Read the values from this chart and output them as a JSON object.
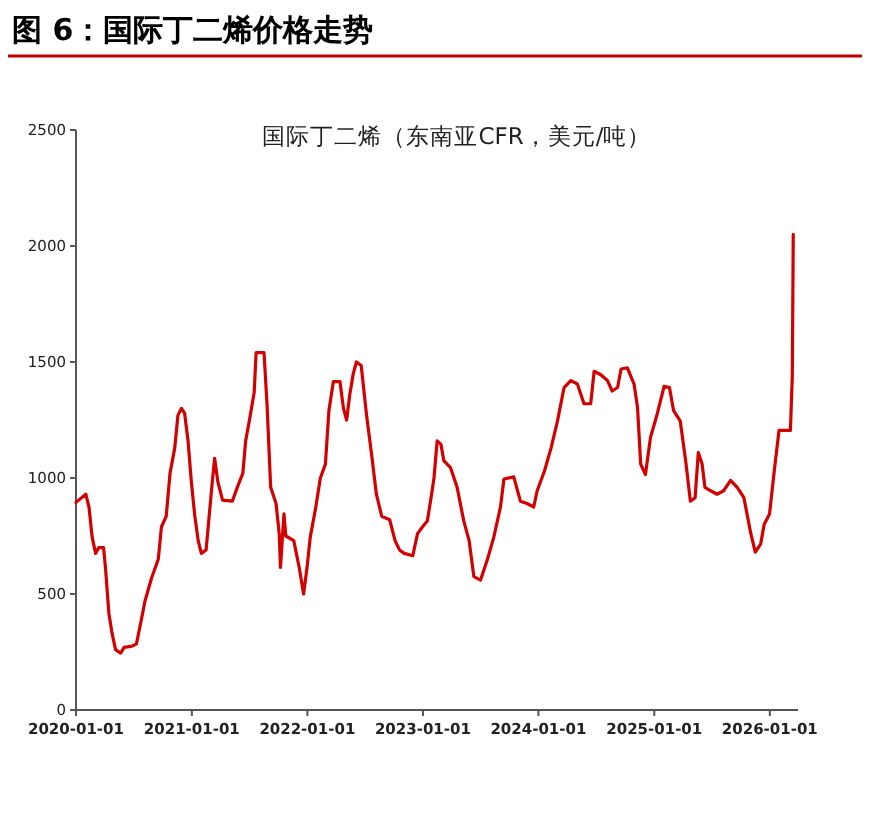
{
  "chart_data": {
    "type": "line",
    "title": "图 6：国际丁二烯价格走势",
    "subtitle": "国际丁二烯（东南亚CFR，美元/吨）",
    "xlim": [
      "2020-01-01",
      "2026-03-31"
    ],
    "ylim": [
      0,
      2500
    ],
    "yticks": [
      0,
      500,
      1000,
      1500,
      2000,
      2500
    ],
    "xticks": [
      "2020-01-01",
      "2021-01-01",
      "2022-01-01",
      "2023-01-01",
      "2024-01-01",
      "2025-01-01",
      "2026-01-01"
    ],
    "series": [
      {
        "color": "#d40000",
        "x": [
          "2020-01-01",
          "2020-02-01",
          "2020-02-11",
          "2020-02-21",
          "2020-03-03",
          "2020-03-13",
          "2020-03-28",
          "2020-04-03",
          "2020-04-14",
          "2020-04-24",
          "2020-05-05",
          "2020-05-21",
          "2020-06-01",
          "2020-06-26",
          "2020-07-10",
          "2020-07-27",
          "2020-08-06",
          "2020-08-27",
          "2020-09-17",
          "2020-09-27",
          "2020-10-12",
          "2020-10-24",
          "2020-11-08",
          "2020-11-18",
          "2020-11-29",
          "2020-12-09",
          "2020-12-20",
          "2020-12-30",
          "2021-01-10",
          "2021-01-21",
          "2021-01-31",
          "2021-02-15",
          "2021-02-27",
          "2021-03-07",
          "2021-03-14",
          "2021-03-24",
          "2021-04-08",
          "2021-05-09",
          "2021-05-26",
          "2021-06-11",
          "2021-06-20",
          "2021-07-02",
          "2021-07-17",
          "2021-07-23",
          "2021-08-17",
          "2021-08-27",
          "2021-09-07",
          "2021-09-24",
          "2021-10-04",
          "2021-10-08",
          "2021-10-19",
          "2021-10-25",
          "2021-11-19",
          "2021-12-06",
          "2021-12-20",
          "2021-12-31",
          "2022-01-10",
          "2022-01-27",
          "2022-02-11",
          "2022-02-27",
          "2022-03-10",
          "2022-03-24",
          "2022-04-14",
          "2022-04-25",
          "2022-05-05",
          "2022-05-15",
          "2022-05-26",
          "2022-06-05",
          "2022-06-20",
          "2022-07-07",
          "2022-07-23",
          "2022-08-07",
          "2022-08-24",
          "2022-09-18",
          "2022-10-05",
          "2022-10-19",
          "2022-11-03",
          "2022-11-30",
          "2022-12-15",
          "2022-12-31",
          "2023-01-15",
          "2023-01-25",
          "2023-02-05",
          "2023-02-15",
          "2023-02-27",
          "2023-03-08",
          "2023-03-29",
          "2023-04-19",
          "2023-05-10",
          "2023-05-27",
          "2023-06-11",
          "2023-07-02",
          "2023-07-23",
          "2023-08-13",
          "2023-09-03",
          "2023-09-14",
          "2023-10-15",
          "2023-11-05",
          "2023-11-26",
          "2023-12-17",
          "2023-12-28",
          "2024-01-20",
          "2024-02-10",
          "2024-03-01",
          "2024-03-22",
          "2024-04-12",
          "2024-05-03",
          "2024-05-24",
          "2024-06-14",
          "2024-06-25",
          "2024-07-16",
          "2024-08-06",
          "2024-08-21",
          "2024-09-07",
          "2024-09-18",
          "2024-10-08",
          "2024-10-29",
          "2024-11-09",
          "2024-11-19",
          "2024-12-04",
          "2024-12-20",
          "2025-01-10",
          "2025-02-01",
          "2025-02-18",
          "2025-03-03",
          "2025-03-24",
          "2025-04-10",
          "2025-04-25",
          "2025-05-10",
          "2025-05-20",
          "2025-06-01",
          "2025-06-10",
          "2025-06-28",
          "2025-07-18",
          "2025-08-08",
          "2025-08-30",
          "2025-09-20",
          "2025-10-11",
          "2025-11-02",
          "2025-11-16",
          "2025-12-03",
          "2025-12-14",
          "2025-12-31",
          "2026-01-15",
          "2026-01-30",
          "2026-03-07",
          "2026-03-13",
          "2026-03-16"
        ],
        "values": [
          895,
          930,
          875,
          745,
          675,
          700,
          700,
          615,
          415,
          330,
          260,
          245,
          270,
          275,
          285,
          400,
          470,
          570,
          650,
          790,
          835,
          1020,
          1130,
          1270,
          1300,
          1280,
          1160,
          990,
          840,
          730,
          675,
          690,
          870,
          990,
          1085,
          985,
          905,
          900,
          965,
          1020,
          1160,
          1250,
          1370,
          1540,
          1540,
          1305,
          960,
          890,
          760,
          615,
          845,
          750,
          730,
          615,
          500,
          615,
          745,
          870,
          1000,
          1060,
          1290,
          1415,
          1415,
          1300,
          1250,
          1360,
          1450,
          1500,
          1485,
          1270,
          1100,
          930,
          835,
          820,
          730,
          690,
          675,
          665,
          760,
          790,
          815,
          900,
          1000,
          1160,
          1145,
          1075,
          1045,
          960,
          815,
          730,
          575,
          560,
          645,
          745,
          875,
          995,
          1005,
          900,
          890,
          875,
          945,
          1030,
          1130,
          1245,
          1390,
          1420,
          1405,
          1320,
          1320,
          1460,
          1445,
          1420,
          1375,
          1390,
          1470,
          1475,
          1405,
          1305,
          1060,
          1015,
          1175,
          1275,
          1395,
          1390,
          1290,
          1245,
          1075,
          900,
          915,
          1110,
          1060,
          960,
          945,
          930,
          945,
          990,
          960,
          915,
          760,
          680,
          715,
          800,
          845,
          1030,
          1205,
          1205,
          1440,
          2050
        ]
      }
    ]
  }
}
